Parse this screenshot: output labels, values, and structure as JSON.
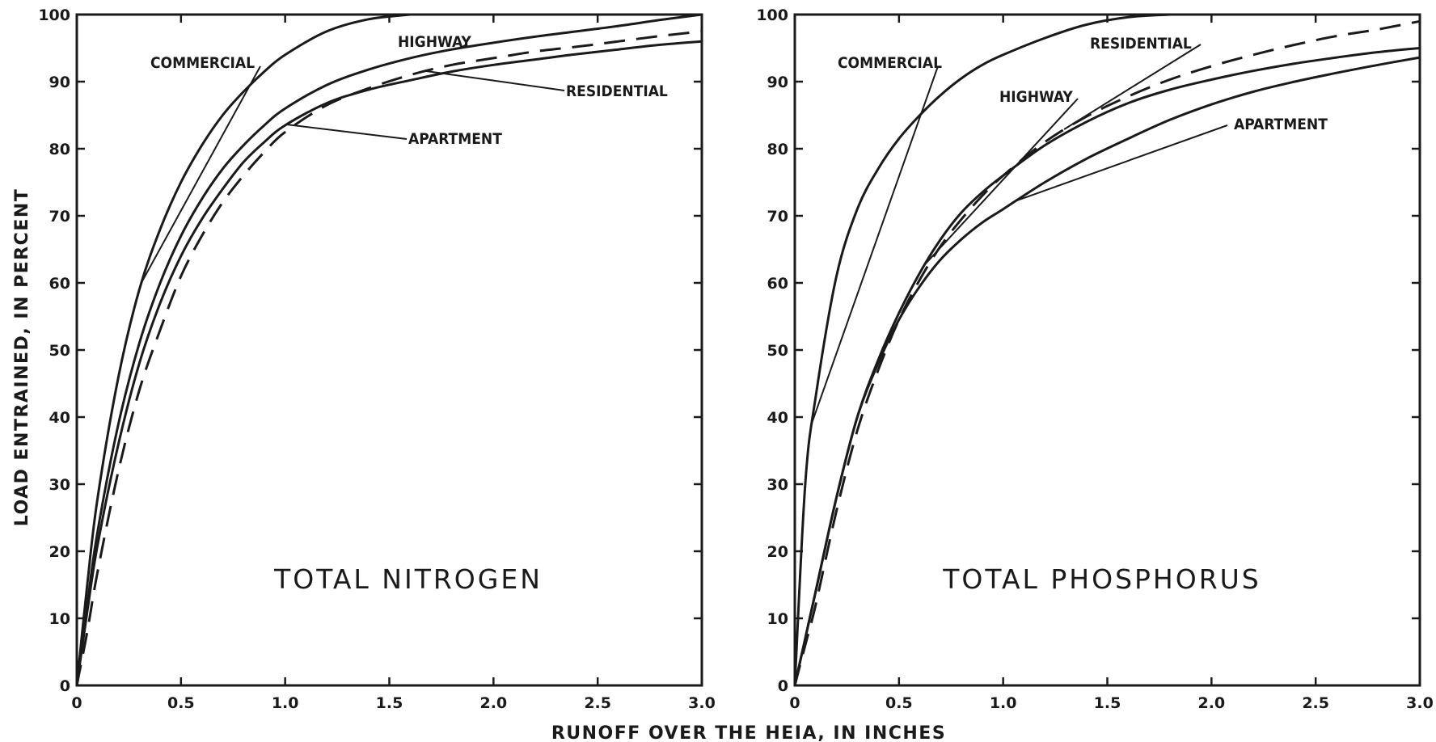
{
  "x_axis_title": "RUNOFF OVER THE HEIA, IN INCHES",
  "y_axis_title": "LOAD ENTRAINED, IN PERCENT",
  "chart_data": [
    {
      "type": "line",
      "title": "TOTAL NITROGEN",
      "xlabel": "RUNOFF OVER THE HEIA, IN INCHES",
      "ylabel": "LOAD ENTRAINED, IN PERCENT",
      "xlim": [
        0,
        3.0
      ],
      "ylim": [
        0,
        100
      ],
      "x_ticks": [
        0,
        0.5,
        1.0,
        1.5,
        2.0,
        2.5,
        3.0
      ],
      "x_tick_labels": [
        "0",
        "0.5",
        "1.0",
        "1.5",
        "2.0",
        "2.5",
        "3.0"
      ],
      "y_ticks": [
        0,
        10,
        20,
        30,
        40,
        50,
        60,
        70,
        80,
        90,
        100
      ],
      "y_tick_labels": [
        "0",
        "10",
        "20",
        "30",
        "40",
        "50",
        "60",
        "70",
        "80",
        "90",
        "100"
      ],
      "grid": false,
      "x": [
        0,
        0.05,
        0.1,
        0.2,
        0.3,
        0.4,
        0.5,
        0.6,
        0.7,
        0.8,
        0.9,
        1.0,
        1.2,
        1.4,
        1.6,
        1.8,
        2.0,
        2.2,
        2.4,
        2.6,
        2.8,
        3.0
      ],
      "series": [
        {
          "name": "COMMERCIAL",
          "style": "solid",
          "values": [
            0,
            15,
            28,
            46,
            59,
            68,
            75,
            80.5,
            85,
            88.5,
            91.5,
            94,
            97.5,
            99.3,
            100,
            null,
            null,
            null,
            null,
            null,
            null,
            null
          ]
        },
        {
          "name": "HIGHWAY",
          "style": "solid",
          "values": [
            0,
            12,
            23,
            39,
            51,
            60,
            67,
            72.5,
            77,
            80.5,
            83.5,
            86,
            89.5,
            91.8,
            93.5,
            94.8,
            95.8,
            96.7,
            97.5,
            98.3,
            99.2,
            100
          ]
        },
        {
          "name": "RESIDENTIAL",
          "style": "dashed",
          "values": [
            0,
            8,
            17,
            32,
            44,
            53,
            61,
            67,
            72,
            76,
            79.5,
            82.5,
            86.5,
            89,
            91,
            92.5,
            93.5,
            94.5,
            95.2,
            96,
            96.8,
            97.5
          ]
        },
        {
          "name": "APARTMENT",
          "style": "solid",
          "values": [
            0,
            11,
            21,
            36,
            48,
            57,
            64,
            69.5,
            74,
            78,
            81,
            83.5,
            86.8,
            88.8,
            90.2,
            91.5,
            92.5,
            93.3,
            94.1,
            94.8,
            95.5,
            96
          ]
        }
      ],
      "curve_labels": [
        "COMMERCIAL",
        "HIGHWAY",
        "RESIDENTIAL",
        "APARTMENT"
      ]
    },
    {
      "type": "line",
      "title": "TOTAL PHOSPHORUS",
      "xlabel": "RUNOFF OVER THE HEIA, IN INCHES",
      "ylabel": "LOAD ENTRAINED, IN PERCENT",
      "xlim": [
        0,
        3.0
      ],
      "ylim": [
        0,
        100
      ],
      "x_ticks": [
        0,
        0.5,
        1.0,
        1.5,
        2.0,
        2.5,
        3.0
      ],
      "x_tick_labels": [
        "0",
        "0.5",
        "1.0",
        "1.5",
        "2.0",
        "2.5",
        "3.0"
      ],
      "y_ticks": [
        0,
        10,
        20,
        30,
        40,
        50,
        60,
        70,
        80,
        90,
        100
      ],
      "y_tick_labels": [
        "0",
        "10",
        "20",
        "30",
        "40",
        "50",
        "60",
        "70",
        "80",
        "90",
        "100"
      ],
      "grid": false,
      "x": [
        0,
        0.05,
        0.1,
        0.2,
        0.3,
        0.4,
        0.5,
        0.6,
        0.7,
        0.8,
        0.9,
        1.0,
        1.2,
        1.4,
        1.6,
        1.8,
        2.0,
        2.2,
        2.4,
        2.6,
        2.8,
        3.0
      ],
      "series": [
        {
          "name": "COMMERCIAL",
          "style": "solid",
          "values": [
            0,
            30,
            43,
            61,
            71,
            77,
            81.5,
            85,
            88,
            90.5,
            92.5,
            94,
            96.5,
            98.5,
            99.6,
            100,
            null,
            null,
            null,
            null,
            null,
            null
          ]
        },
        {
          "name": "RESIDENTIAL",
          "style": "dashed",
          "values": [
            0,
            6,
            12,
            26,
            38,
            47,
            54.5,
            60.5,
            65.5,
            69.5,
            73,
            76,
            81,
            84.8,
            87.8,
            90.3,
            92.3,
            94,
            95.5,
            96.8,
            97.8,
            99
          ]
        },
        {
          "name": "HIGHWAY",
          "style": "solid",
          "values": [
            0,
            7,
            14,
            28,
            40,
            48.5,
            55.5,
            61.5,
            66.5,
            70.5,
            73.5,
            76,
            80.5,
            84,
            86.8,
            88.8,
            90.3,
            91.6,
            92.7,
            93.6,
            94.4,
            95
          ]
        },
        {
          "name": "APARTMENT",
          "style": "solid",
          "values": [
            0,
            7,
            14,
            28,
            40,
            48,
            54.5,
            59.5,
            63.5,
            66.5,
            69,
            71,
            75,
            78.5,
            81.5,
            84.3,
            86.6,
            88.5,
            90,
            91.3,
            92.5,
            93.6
          ]
        }
      ],
      "curve_labels": [
        "COMMERCIAL",
        "RESIDENTIAL",
        "HIGHWAY",
        "APARTMENT"
      ]
    }
  ]
}
